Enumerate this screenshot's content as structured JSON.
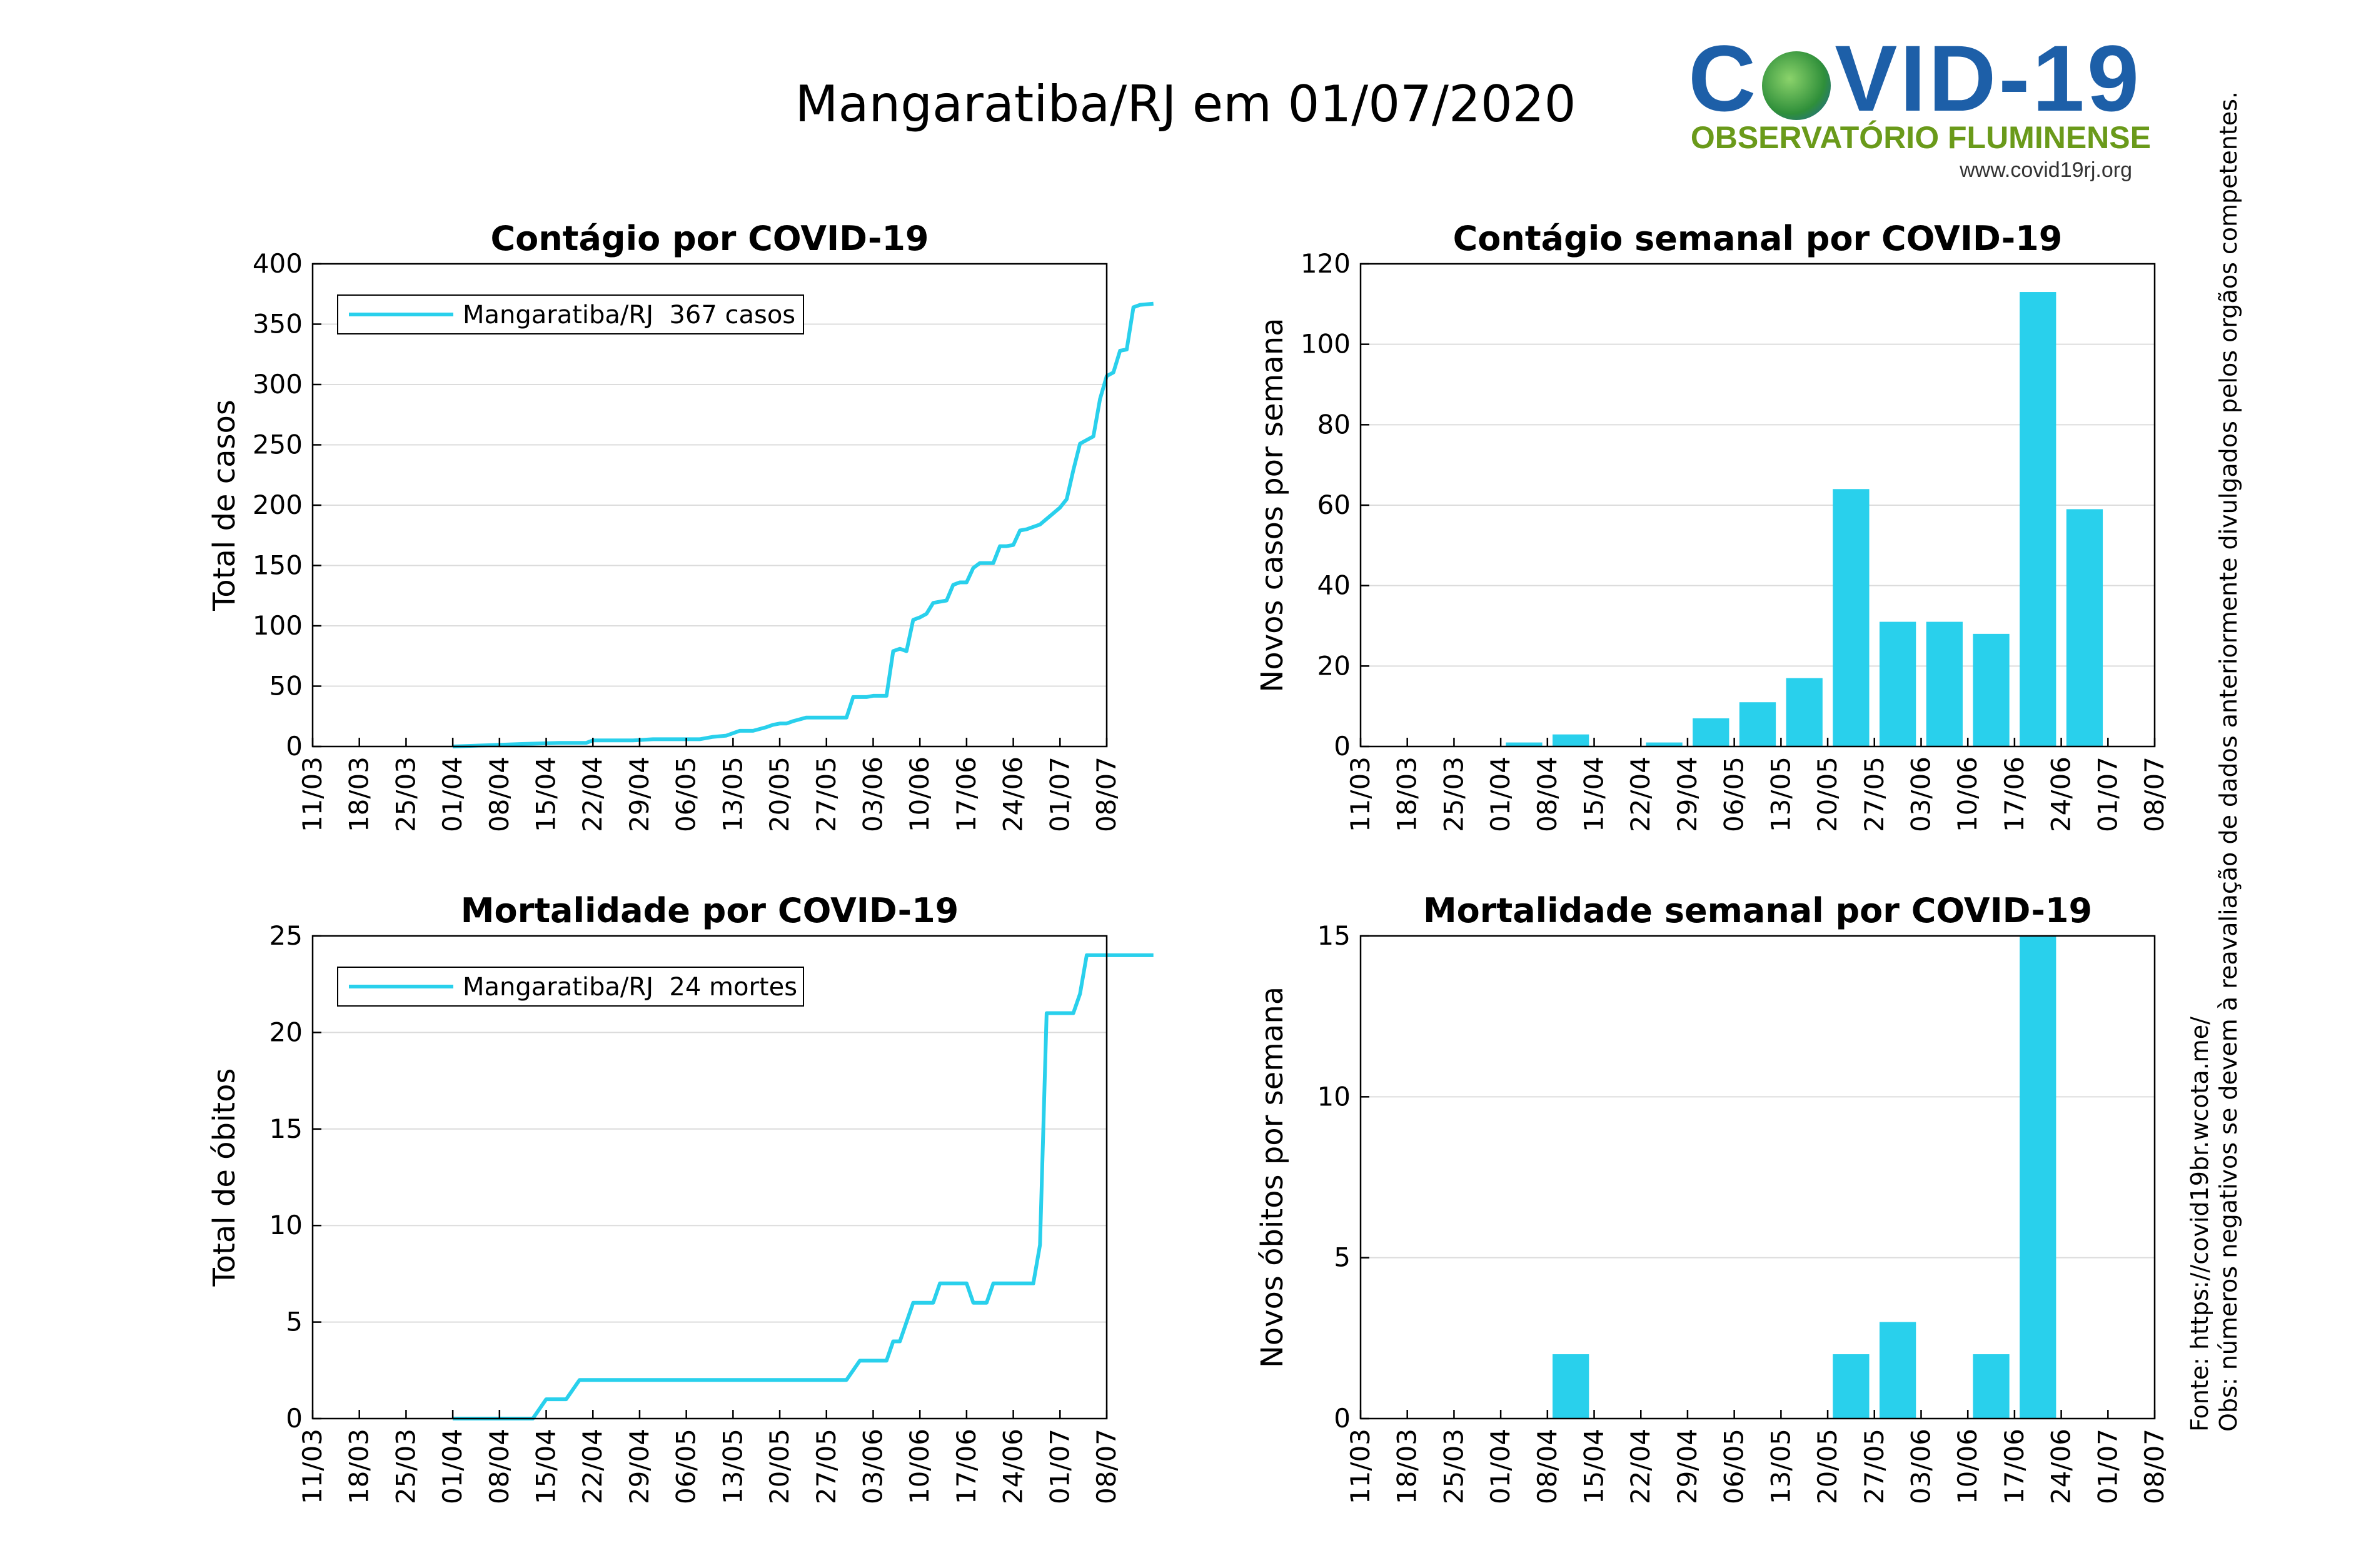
{
  "page_title": "Mangaratiba/RJ em 01/07/2020",
  "logo": {
    "main": "C VID-19",
    "subtitle": "OBSERVATÓRIO FLUMINENSE",
    "url": "www.covid19rj.org",
    "colors": {
      "blue": "#1d5fa8",
      "green": "#6a9a1a"
    }
  },
  "side_note": {
    "source": "Fonte: https://covid19br.wcota.me/",
    "obs": "Obs: números negativos se devem à reavaliação de dados anteriormente divulgados pelos orgãos competentes."
  },
  "series_color": "#29d0ec",
  "chart_data": [
    {
      "type": "line",
      "title": "Contágio por COVID-19",
      "xlabel": "",
      "ylabel": "Total de casos",
      "xticks": [
        "11/03",
        "18/03",
        "25/03",
        "01/04",
        "08/04",
        "15/04",
        "22/04",
        "29/04",
        "06/05",
        "13/05",
        "20/05",
        "27/05",
        "03/06",
        "10/06",
        "17/06",
        "24/06",
        "01/07",
        "08/07"
      ],
      "ylim": [
        0,
        400
      ],
      "yticks": [
        0,
        50,
        100,
        150,
        200,
        250,
        300,
        350,
        400
      ],
      "legend": "Mangaratiba/RJ  367 casos",
      "legend_position": "top-left",
      "grid": "horizontal",
      "x_unit": "days since 11/03",
      "points": [
        [
          21,
          0
        ],
        [
          26,
          1
        ],
        [
          31,
          2
        ],
        [
          37,
          3
        ],
        [
          41,
          3
        ],
        [
          42,
          5
        ],
        [
          48,
          5
        ],
        [
          51,
          6
        ],
        [
          58,
          6
        ],
        [
          60,
          8
        ],
        [
          62,
          9
        ],
        [
          64,
          13
        ],
        [
          66,
          13
        ],
        [
          68,
          16
        ],
        [
          69,
          18
        ],
        [
          70,
          19
        ],
        [
          71,
          19
        ],
        [
          72,
          21
        ],
        [
          74,
          24
        ],
        [
          80,
          24
        ],
        [
          81,
          41
        ],
        [
          83,
          41
        ],
        [
          84,
          42
        ],
        [
          86,
          42
        ],
        [
          87,
          79
        ],
        [
          88,
          81
        ],
        [
          89,
          79
        ],
        [
          90,
          105
        ],
        [
          91,
          107
        ],
        [
          92,
          110
        ],
        [
          93,
          119
        ],
        [
          95,
          121
        ],
        [
          96,
          134
        ],
        [
          97,
          136
        ],
        [
          98,
          136
        ],
        [
          99,
          148
        ],
        [
          100,
          152
        ],
        [
          102,
          152
        ],
        [
          103,
          166
        ],
        [
          104,
          166
        ],
        [
          105,
          167
        ],
        [
          106,
          179
        ],
        [
          107,
          180
        ],
        [
          109,
          184
        ],
        [
          112,
          198
        ],
        [
          113,
          205
        ],
        [
          114,
          229
        ],
        [
          115,
          251
        ],
        [
          117,
          257
        ],
        [
          118,
          288
        ],
        [
          119,
          307
        ],
        [
          120,
          310
        ],
        [
          121,
          328
        ],
        [
          122,
          329
        ],
        [
          123,
          364
        ],
        [
          124,
          366
        ],
        [
          126,
          367
        ]
      ],
      "xmax": 119
    },
    {
      "type": "bar",
      "title": "Contágio semanal por COVID-19",
      "xlabel": "",
      "ylabel": "Novos casos por semana",
      "xticks": [
        "11/03",
        "18/03",
        "25/03",
        "01/04",
        "08/04",
        "15/04",
        "22/04",
        "29/04",
        "06/05",
        "13/05",
        "20/05",
        "27/05",
        "03/06",
        "10/06",
        "17/06",
        "24/06",
        "01/07",
        "08/07"
      ],
      "ylim": [
        0,
        120
      ],
      "yticks": [
        0,
        20,
        40,
        60,
        80,
        100,
        120
      ],
      "grid": "horizontal",
      "values": [
        0,
        0,
        0,
        1,
        3,
        0,
        1,
        7,
        11,
        17,
        64,
        31,
        31,
        28,
        113,
        59
      ]
    },
    {
      "type": "line",
      "title": "Mortalidade por COVID-19",
      "xlabel": "",
      "ylabel": "Total de óbitos",
      "xticks": [
        "11/03",
        "18/03",
        "25/03",
        "01/04",
        "08/04",
        "15/04",
        "22/04",
        "29/04",
        "06/05",
        "13/05",
        "20/05",
        "27/05",
        "03/06",
        "10/06",
        "17/06",
        "24/06",
        "01/07",
        "08/07"
      ],
      "ylim": [
        0,
        25
      ],
      "yticks": [
        0,
        5,
        10,
        15,
        20,
        25
      ],
      "legend": "Mangaratiba/RJ  24 mortes",
      "legend_position": "top-left",
      "grid": "horizontal",
      "x_unit": "days since 11/03",
      "points": [
        [
          21,
          0
        ],
        [
          33,
          0
        ],
        [
          35,
          1
        ],
        [
          38,
          1
        ],
        [
          40,
          2
        ],
        [
          58,
          2
        ],
        [
          70,
          2
        ],
        [
          80,
          2
        ],
        [
          82,
          3
        ],
        [
          86,
          3
        ],
        [
          87,
          4
        ],
        [
          88,
          4
        ],
        [
          90,
          6
        ],
        [
          93,
          6
        ],
        [
          94,
          7
        ],
        [
          98,
          7
        ],
        [
          99,
          6
        ],
        [
          101,
          6
        ],
        [
          102,
          7
        ],
        [
          108,
          7
        ],
        [
          109,
          9
        ],
        [
          110,
          21
        ],
        [
          114,
          21
        ],
        [
          115,
          22
        ],
        [
          116,
          24
        ],
        [
          118,
          24
        ],
        [
          126,
          24
        ]
      ]
    },
    {
      "type": "bar",
      "title": "Mortalidade semanal por COVID-19",
      "xlabel": "",
      "ylabel": "Novos óbitos por semana",
      "xticks": [
        "11/03",
        "18/03",
        "25/03",
        "01/04",
        "08/04",
        "15/04",
        "22/04",
        "29/04",
        "06/05",
        "13/05",
        "20/05",
        "27/05",
        "03/06",
        "10/06",
        "17/06",
        "24/06",
        "01/07",
        "08/07"
      ],
      "ylim": [
        0,
        15
      ],
      "yticks": [
        0,
        5,
        10,
        15
      ],
      "grid": "horizontal",
      "values": [
        0,
        0,
        0,
        0,
        2,
        0,
        0,
        0,
        0,
        0,
        2,
        3,
        0,
        2,
        15,
        0
      ]
    }
  ]
}
